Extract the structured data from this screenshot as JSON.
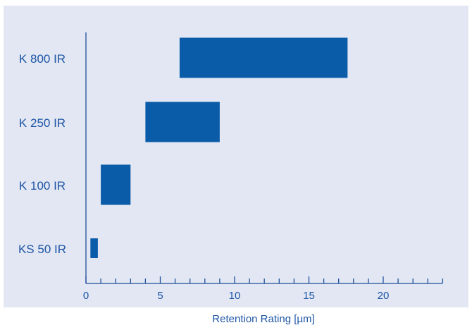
{
  "colors": {
    "page_background": "#ffffff",
    "plot_background": "#e2e7f3",
    "bar": "#0a5ba8",
    "axis": "#1f4f9a",
    "label_text": "#1d55a5"
  },
  "chart_data": {
    "type": "bar",
    "orientation": "horizontal",
    "bar_style": "floating-range",
    "categories": [
      "K 800 IR",
      "K 250 IR",
      "K 100 IR",
      "KS 50 IR"
    ],
    "ranges": [
      [
        6.3,
        17.6
      ],
      [
        4.0,
        9.0
      ],
      [
        1.0,
        3.0
      ],
      [
        0.3,
        0.8
      ]
    ],
    "xlabel": "Retention Rating [µm]",
    "xlim": [
      0,
      24
    ],
    "x_ticks_major": [
      0,
      5,
      10,
      15,
      20
    ],
    "x_minor_tick_step": 1,
    "grid": false,
    "legend": "none"
  }
}
